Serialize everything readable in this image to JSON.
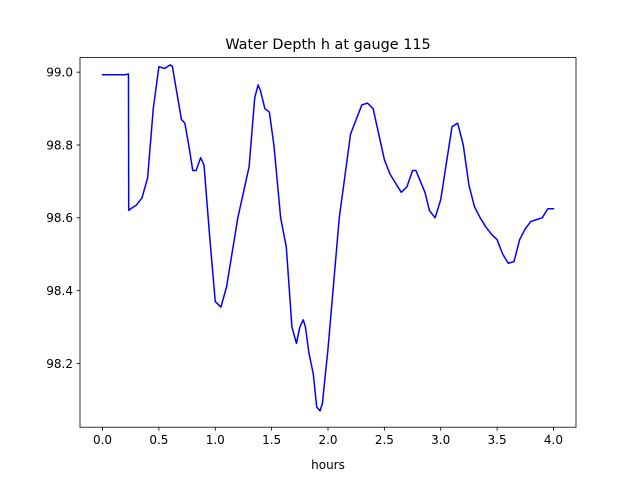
{
  "chart_data": {
    "type": "line",
    "title": "Water Depth h at gauge 115",
    "xlabel": "hours",
    "ylabel": "",
    "xlim": [
      -0.2,
      4.2
    ],
    "ylim": [
      98.025,
      99.04
    ],
    "xticks": [
      0.0,
      0.5,
      1.0,
      1.5,
      2.0,
      2.5,
      3.0,
      3.5,
      4.0
    ],
    "xtick_labels": [
      "0.0",
      "0.5",
      "1.0",
      "1.5",
      "2.0",
      "2.5",
      "3.0",
      "3.5",
      "4.0"
    ],
    "yticks": [
      98.2,
      98.4,
      98.6,
      98.8,
      99.0
    ],
    "ytick_labels": [
      "98.2",
      "98.4",
      "98.6",
      "98.8",
      "99.0"
    ],
    "grid": false,
    "series": [
      {
        "name": "",
        "color": "#0000ff",
        "x": [
          0.0,
          0.1,
          0.2,
          0.23,
          0.232,
          0.25,
          0.3,
          0.35,
          0.4,
          0.45,
          0.5,
          0.55,
          0.6,
          0.62,
          0.65,
          0.7,
          0.73,
          0.77,
          0.8,
          0.83,
          0.87,
          0.9,
          0.95,
          1.0,
          1.05,
          1.1,
          1.2,
          1.3,
          1.35,
          1.38,
          1.4,
          1.44,
          1.48,
          1.52,
          1.58,
          1.63,
          1.68,
          1.72,
          1.75,
          1.78,
          1.8,
          1.83,
          1.87,
          1.9,
          1.93,
          1.95,
          2.0,
          2.1,
          2.2,
          2.3,
          2.35,
          2.4,
          2.5,
          2.55,
          2.6,
          2.65,
          2.7,
          2.75,
          2.78,
          2.82,
          2.86,
          2.9,
          2.95,
          3.0,
          3.05,
          3.1,
          3.15,
          3.2,
          3.25,
          3.3,
          3.35,
          3.4,
          3.45,
          3.5,
          3.55,
          3.6,
          3.65,
          3.7,
          3.75,
          3.8,
          3.85,
          3.9,
          3.95,
          4.0
        ],
        "y": [
          98.993,
          98.993,
          98.993,
          98.995,
          98.62,
          98.625,
          98.635,
          98.655,
          98.71,
          98.9,
          99.015,
          99.01,
          99.02,
          99.015,
          98.96,
          98.87,
          98.86,
          98.79,
          98.73,
          98.73,
          98.765,
          98.745,
          98.55,
          98.37,
          98.355,
          98.41,
          98.6,
          98.74,
          98.93,
          98.965,
          98.95,
          98.9,
          98.89,
          98.8,
          98.6,
          98.52,
          98.3,
          98.255,
          98.3,
          98.32,
          98.3,
          98.23,
          98.17,
          98.08,
          98.07,
          98.09,
          98.24,
          98.6,
          98.83,
          98.91,
          98.915,
          98.9,
          98.76,
          98.72,
          98.695,
          98.67,
          98.685,
          98.73,
          98.73,
          98.7,
          98.67,
          98.62,
          98.6,
          98.65,
          98.75,
          98.85,
          98.86,
          98.8,
          98.69,
          98.63,
          98.6,
          98.575,
          98.555,
          98.54,
          98.5,
          98.475,
          98.48,
          98.54,
          98.57,
          98.59,
          98.595,
          98.6,
          98.625,
          98.625
        ]
      }
    ]
  }
}
